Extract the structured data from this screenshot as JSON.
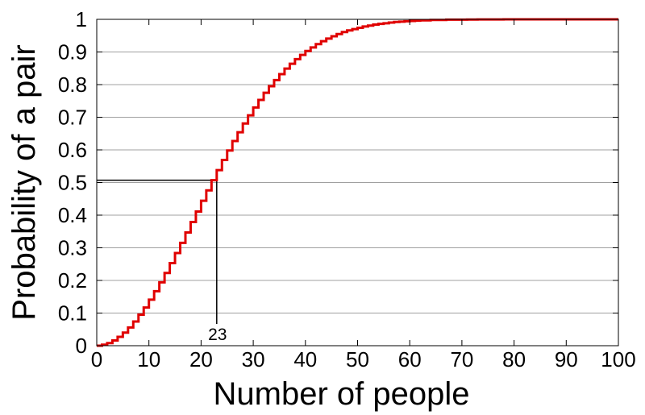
{
  "chart_data": {
    "type": "line",
    "step": true,
    "title": "",
    "xlabel": "Number of people",
    "ylabel": "Probability of a pair",
    "xlim": [
      0,
      100
    ],
    "ylim": [
      0,
      1
    ],
    "x_ticks": [
      0,
      10,
      20,
      30,
      40,
      50,
      60,
      70,
      80,
      90,
      100
    ],
    "y_ticks": [
      0,
      0.1,
      0.2,
      0.3,
      0.4,
      0.5,
      0.6,
      0.7,
      0.8,
      0.9,
      1
    ],
    "y_tick_labels": [
      "0",
      "0.1",
      "0.2",
      "0.3",
      "0.4",
      "0.5",
      "0.6",
      "0.7",
      "0.8",
      "0.9",
      "1"
    ],
    "x_tick_labels": [
      "0",
      "10",
      "20",
      "30",
      "40",
      "50",
      "60",
      "70",
      "80",
      "90",
      "100"
    ],
    "grid": "horizontal",
    "line_color": "#e00000",
    "series": [
      {
        "x": [
          1,
          2,
          3,
          4,
          5,
          6,
          7,
          8,
          9,
          10,
          11,
          12,
          13,
          14,
          15,
          16,
          17,
          18,
          19,
          20,
          21,
          22,
          23,
          24,
          25,
          26,
          27,
          28,
          29,
          30,
          31,
          32,
          33,
          34,
          35,
          36,
          37,
          38,
          39,
          40,
          41,
          42,
          43,
          44,
          45,
          46,
          47,
          48,
          49,
          50,
          51,
          52,
          53,
          54,
          55,
          56,
          57,
          58,
          59,
          60,
          61,
          62,
          63,
          64,
          65,
          66,
          67,
          68,
          69,
          70,
          71,
          72,
          73,
          74,
          75,
          76,
          77,
          78,
          79,
          80,
          81,
          82,
          83,
          84,
          85,
          86,
          87,
          88,
          89,
          90,
          91,
          92,
          93,
          94,
          95,
          96,
          97,
          98,
          99,
          100
        ],
        "values": [
          0,
          0.003,
          0.008,
          0.016,
          0.027,
          0.04,
          0.056,
          0.074,
          0.095,
          0.117,
          0.141,
          0.167,
          0.194,
          0.223,
          0.253,
          0.284,
          0.315,
          0.347,
          0.379,
          0.411,
          0.444,
          0.476,
          0.507,
          0.538,
          0.569,
          0.598,
          0.627,
          0.654,
          0.681,
          0.706,
          0.73,
          0.753,
          0.775,
          0.795,
          0.814,
          0.832,
          0.849,
          0.864,
          0.878,
          0.891,
          0.903,
          0.914,
          0.924,
          0.933,
          0.941,
          0.948,
          0.955,
          0.961,
          0.966,
          0.97,
          0.974,
          0.978,
          0.981,
          0.984,
          0.986,
          0.988,
          0.99,
          0.992,
          0.993,
          0.994,
          0.995,
          0.996,
          0.997,
          0.997,
          0.998,
          0.998,
          0.998,
          0.999,
          0.999,
          0.999,
          0.999,
          0.9993,
          0.9995,
          0.9996,
          0.9997,
          0.9997,
          0.9998,
          0.9998,
          0.9999,
          0.9999,
          0.9999,
          0.9999,
          1,
          1,
          1,
          1,
          1,
          1,
          1,
          1,
          1,
          1,
          1,
          1,
          1,
          1,
          1,
          1,
          1,
          1
        ]
      }
    ],
    "annotation": {
      "label": "23",
      "x": 23,
      "y": 0.507
    }
  }
}
